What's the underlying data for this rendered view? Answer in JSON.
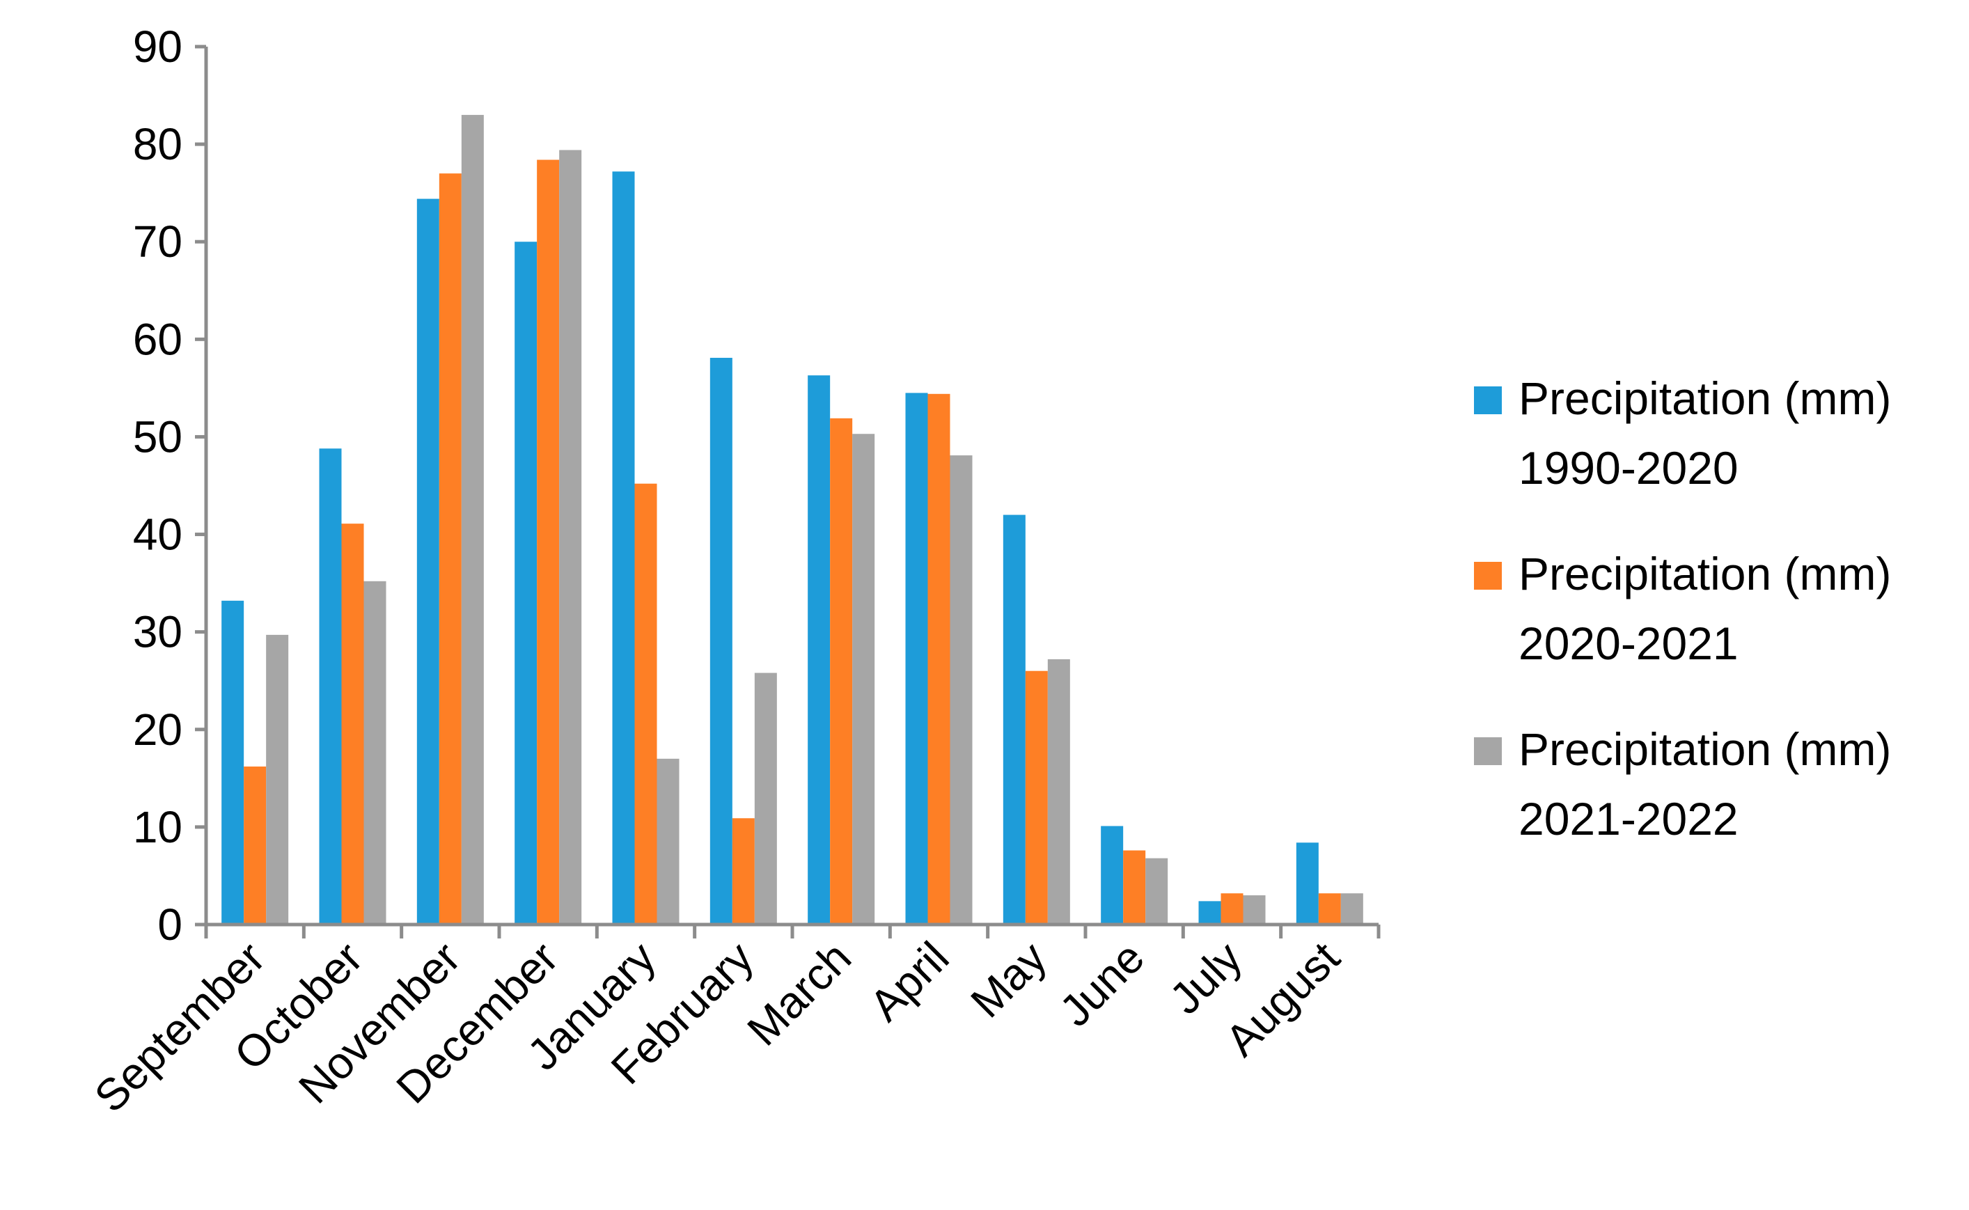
{
  "chart_data": {
    "type": "bar",
    "title": "",
    "xlabel": "",
    "ylabel": "",
    "ylim": [
      0,
      90
    ],
    "yticks": [
      0,
      10,
      20,
      30,
      40,
      50,
      60,
      70,
      80,
      90
    ],
    "grid": false,
    "legend_position": "right",
    "categories": [
      "September",
      "October",
      "November",
      "December",
      "January",
      "February",
      "March",
      "April",
      "May",
      "June",
      "July",
      "August"
    ],
    "series": [
      {
        "name": "Precipitation (mm) 1990-2020",
        "name_lines": [
          "Precipitation (mm)",
          "1990-2020"
        ],
        "color": "#1E9CD9",
        "values": [
          33.2,
          48.8,
          74.4,
          70.0,
          77.2,
          58.1,
          56.3,
          54.5,
          42.0,
          10.1,
          2.4,
          8.4
        ]
      },
      {
        "name": "Precipitation (mm) 2020-2021",
        "name_lines": [
          "Precipitation (mm)",
          "2020-2021"
        ],
        "color": "#FE7F25",
        "values": [
          16.2,
          41.1,
          77.0,
          78.4,
          45.2,
          10.9,
          51.9,
          54.4,
          26.0,
          7.6,
          3.2,
          3.2
        ]
      },
      {
        "name": "Precipitation (mm) 2021-2022",
        "name_lines": [
          "Precipitation (mm)",
          "2021-2022"
        ],
        "color": "#A6A6A6",
        "values": [
          29.7,
          35.2,
          83.0,
          79.4,
          17.0,
          25.8,
          50.3,
          48.1,
          27.2,
          6.8,
          3.0,
          3.2
        ]
      }
    ],
    "axis_color": "#8C8C8C"
  }
}
